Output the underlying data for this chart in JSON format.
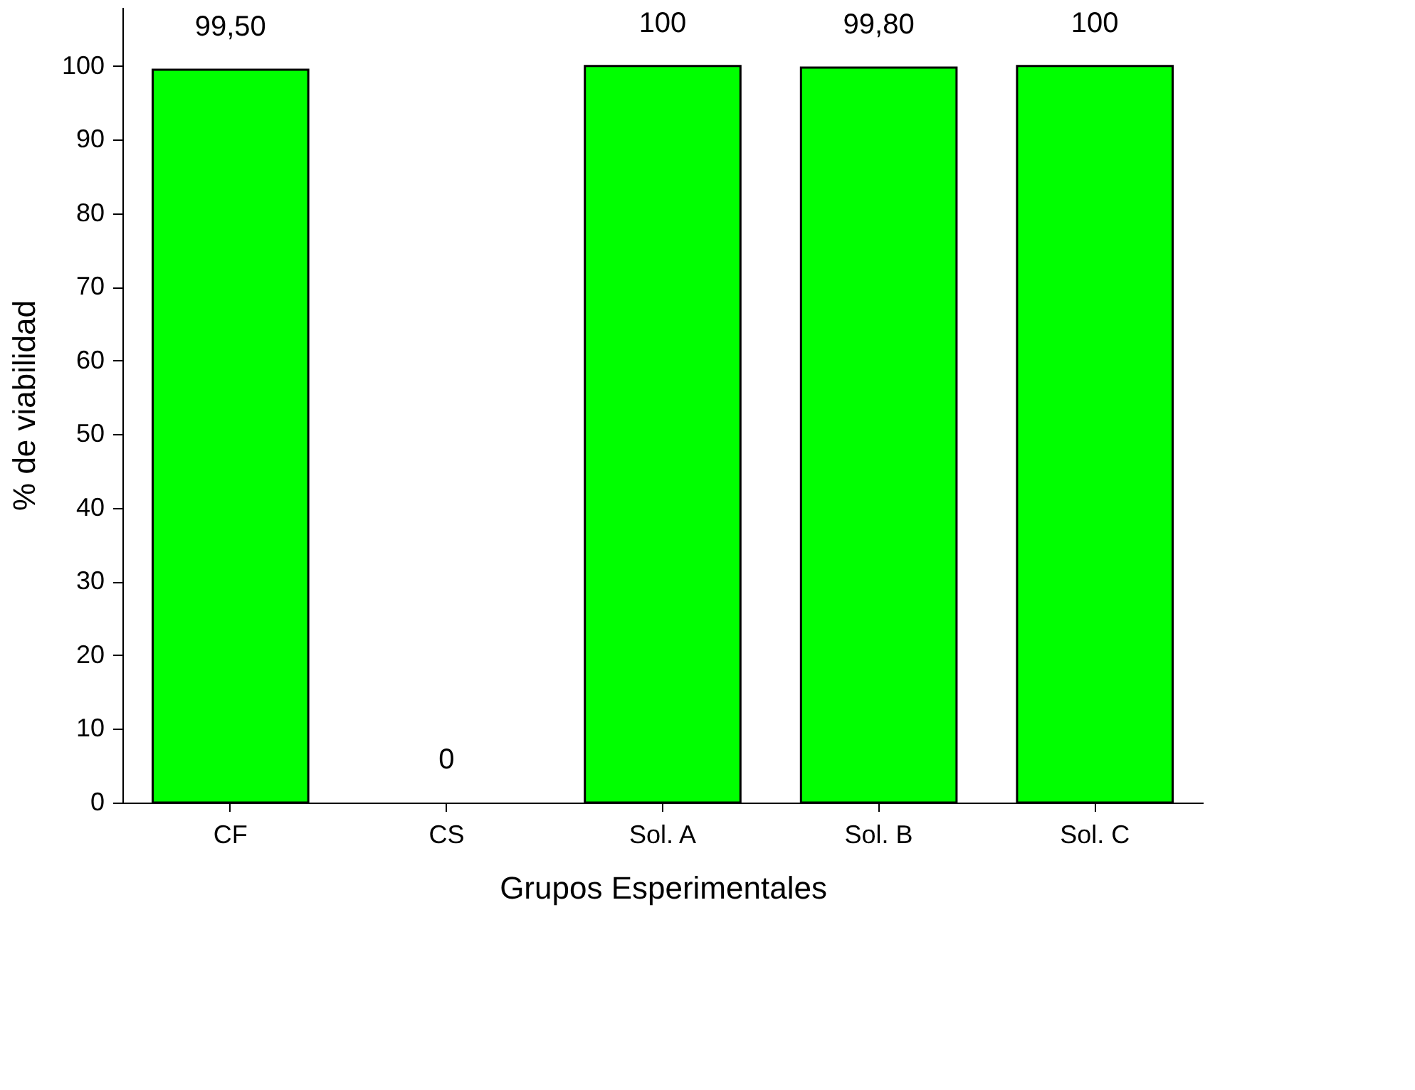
{
  "chart_data": {
    "type": "bar",
    "xlabel": "Grupos Esperimentales",
    "ylabel": "% de viabilidad",
    "categories": [
      "CF",
      "CS",
      "Sol. A",
      "Sol. B",
      "Sol. C"
    ],
    "values": [
      99.5,
      0,
      100,
      99.8,
      100
    ],
    "value_labels": [
      "99,50",
      "0",
      "100",
      "99,80",
      "100"
    ],
    "color": "#00ff00",
    "ylim": [
      0,
      108
    ],
    "yticks": [
      0,
      10,
      20,
      30,
      40,
      50,
      60,
      70,
      80,
      90,
      100
    ],
    "grid": false
  }
}
